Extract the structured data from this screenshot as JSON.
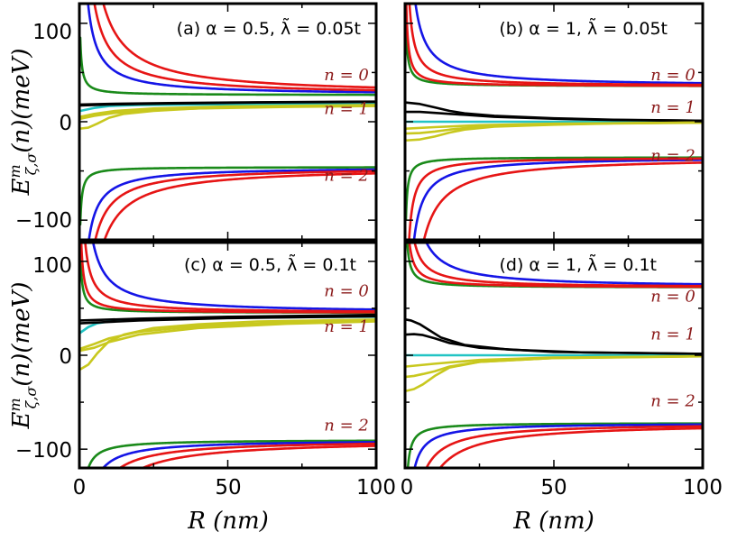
{
  "figure": {
    "xlabel": "R (nm)",
    "ylabel": "E^m_{ζ,σ}(n)(meV)",
    "ylabel_parts": {
      "base": "E",
      "sup": "m",
      "sub": "ζ,σ",
      "rest": "(n)(meV)"
    }
  },
  "chart_data": [
    {
      "type": "line",
      "panel": "a",
      "title": "(a) α = 0.5, λ̃ = 0.05t",
      "xlim": [
        0,
        100
      ],
      "ylim": [
        -120,
        120
      ],
      "xticks": [
        "0",
        "50",
        "100"
      ],
      "yticks": [
        "100",
        "0",
        "−100"
      ],
      "grid": false,
      "n_labels": [
        {
          "text": "n = 0",
          "x": 90,
          "y": 42
        },
        {
          "text": "n = 1",
          "x": 90,
          "y": 8
        },
        {
          "text": "n = 2",
          "x": 90,
          "y": -60
        }
      ],
      "series": [
        {
          "name": "n0-green",
          "color": "#1a8a1a",
          "kind": "decay",
          "a": 27,
          "k": 35,
          "p": 1.0,
          "c": 0.3
        },
        {
          "name": "n0-blue",
          "color": "#1515e6",
          "kind": "decay",
          "a": 27,
          "k": 300,
          "p": 1.0,
          "c": 0.3
        },
        {
          "name": "n0-red-1",
          "color": "#e61515",
          "kind": "decay",
          "a": 27,
          "k": 500,
          "p": 1.0,
          "c": 0.3
        },
        {
          "name": "n0-red-2",
          "color": "#e61515",
          "kind": "decay",
          "a": 27,
          "k": 780,
          "p": 1.0,
          "c": 0.3
        },
        {
          "name": "n1-cyan",
          "color": "#22c4c4",
          "kind": "points",
          "x": [
            0.3,
            5,
            10,
            20,
            40,
            70,
            100
          ],
          "y": [
            11,
            14,
            16,
            17,
            17.5,
            18,
            18.2
          ]
        },
        {
          "name": "n1-black-1",
          "color": "#000000",
          "kind": "points",
          "x": [
            0.3,
            10,
            30,
            60,
            100
          ],
          "y": [
            17.5,
            18.2,
            19,
            19.8,
            20.5
          ]
        },
        {
          "name": "n1-black-2",
          "color": "#000000",
          "kind": "points",
          "x": [
            0.3,
            10,
            30,
            60,
            100
          ],
          "y": [
            16.5,
            17.5,
            18.5,
            19.5,
            20.2
          ]
        },
        {
          "name": "n1-yellow-1",
          "color": "#c8c81e",
          "kind": "points",
          "x": [
            0.3,
            3,
            6,
            10,
            15,
            25,
            40,
            70,
            100
          ],
          "y": [
            -7,
            -6,
            -2,
            4,
            8,
            11,
            13.5,
            15,
            16
          ]
        },
        {
          "name": "n1-yellow-2",
          "color": "#c8c81e",
          "kind": "points",
          "x": [
            0.3,
            5,
            12,
            25,
            50,
            100
          ],
          "y": [
            3,
            6,
            9,
            12,
            14.5,
            16.5
          ]
        },
        {
          "name": "n1-yellow-3",
          "color": "#c8c81e",
          "kind": "points",
          "x": [
            0.3,
            5,
            12,
            25,
            50,
            100
          ],
          "y": [
            5,
            8,
            11,
            13.5,
            15.5,
            17
          ]
        },
        {
          "name": "n2-green",
          "color": "#1a8a1a",
          "kind": "decay",
          "a": -46,
          "k": -35,
          "p": 1.0,
          "c": 0.3
        },
        {
          "name": "n2-blue",
          "color": "#1515e6",
          "kind": "decay",
          "a": -46,
          "k": -260,
          "p": 1.0,
          "c": 0.3
        },
        {
          "name": "n2-red-1",
          "color": "#e61515",
          "kind": "decay",
          "a": -46,
          "k": -420,
          "p": 1.0,
          "c": 0.3
        },
        {
          "name": "n2-red-2",
          "color": "#e61515",
          "kind": "decay",
          "a": -46,
          "k": -650,
          "p": 1.0,
          "c": 0.3
        }
      ]
    },
    {
      "type": "line",
      "panel": "b",
      "title": "(b) α = 1, λ̃ = 0.05t",
      "xlim": [
        0,
        100
      ],
      "ylim": [
        -120,
        120
      ],
      "xticks": [
        "0",
        "50",
        "100"
      ],
      "yticks": [
        "100",
        "0",
        "−100"
      ],
      "grid": false,
      "n_labels": [
        {
          "text": "n = 0",
          "x": 90,
          "y": 42
        },
        {
          "text": "n = 1",
          "x": 90,
          "y": 9
        },
        {
          "text": "n = 2",
          "x": 90,
          "y": -40
        }
      ],
      "series": [
        {
          "name": "n0-green",
          "color": "#1a8a1a",
          "kind": "decay",
          "a": 36,
          "k": 38,
          "p": 1.0,
          "c": 0.3
        },
        {
          "name": "n0-blue",
          "color": "#1515e6",
          "kind": "decay",
          "a": 36,
          "k": 320,
          "p": 1.0,
          "c": 0.3
        },
        {
          "name": "n0-red-1",
          "color": "#e61515",
          "kind": "decay",
          "a": 36,
          "k": 150,
          "p": 1.0,
          "c": 0.3
        },
        {
          "name": "n0-red-2",
          "color": "#e61515",
          "kind": "decay",
          "a": 36,
          "k": 60,
          "p": 1.0,
          "c": 0.3
        },
        {
          "name": "n1-cyan",
          "color": "#22c4c4",
          "kind": "points",
          "x": [
            0.3,
            100
          ],
          "y": [
            0,
            0
          ]
        },
        {
          "name": "n1-black-1",
          "color": "#000000",
          "kind": "points",
          "x": [
            0.3,
            5,
            10,
            15,
            20,
            30,
            50,
            70,
            100
          ],
          "y": [
            19.5,
            18,
            14.5,
            11,
            8.5,
            6,
            3.5,
            2,
            1
          ]
        },
        {
          "name": "n1-black-2",
          "color": "#000000",
          "kind": "points",
          "x": [
            0.3,
            5,
            10,
            15,
            20,
            30,
            50,
            70,
            100
          ],
          "y": [
            10,
            10,
            9,
            8,
            7,
            5,
            3,
            1.8,
            1
          ]
        },
        {
          "name": "n1-yellow-1",
          "color": "#c8c81e",
          "kind": "points",
          "x": [
            0.3,
            5,
            10,
            15,
            20,
            30,
            50,
            70,
            100
          ],
          "y": [
            -19,
            -18,
            -15,
            -11,
            -8,
            -5,
            -3,
            -1.8,
            -1
          ]
        },
        {
          "name": "n1-yellow-2",
          "color": "#c8c81e",
          "kind": "points",
          "x": [
            0.3,
            5,
            10,
            15,
            20,
            30,
            50,
            70,
            100
          ],
          "y": [
            -12,
            -11.5,
            -10,
            -8,
            -6.5,
            -4.5,
            -2.7,
            -1.6,
            -0.8
          ]
        },
        {
          "name": "n1-yellow-3",
          "color": "#c8c81e",
          "kind": "points",
          "x": [
            0.3,
            10,
            25,
            50,
            100
          ],
          "y": [
            -7,
            -5.5,
            -3.5,
            -2,
            -0.8
          ]
        },
        {
          "name": "n2-green",
          "color": "#1a8a1a",
          "kind": "decay",
          "a": -36,
          "k": -38,
          "p": 1.0,
          "c": 0.3
        },
        {
          "name": "n2-blue",
          "color": "#1515e6",
          "kind": "decay",
          "a": -36,
          "k": -280,
          "p": 1.0,
          "c": 0.3
        },
        {
          "name": "n2-red-1",
          "color": "#e61515",
          "kind": "decay",
          "a": -36,
          "k": -140,
          "p": 1.0,
          "c": 0.3
        },
        {
          "name": "n2-red-2",
          "color": "#e61515",
          "kind": "decay",
          "a": -36,
          "k": -560,
          "p": 1.0,
          "c": 0.3
        }
      ]
    },
    {
      "type": "line",
      "panel": "c",
      "title": "(c) α = 0.5, λ̃ = 0.1t",
      "xlim": [
        0,
        100
      ],
      "ylim": [
        -120,
        120
      ],
      "xticks": [
        "0",
        "50",
        "100"
      ],
      "yticks": [
        "100",
        "0",
        "−100"
      ],
      "grid": false,
      "n_labels": [
        {
          "text": "n = 0",
          "x": 90,
          "y": 63
        },
        {
          "text": "n = 1",
          "x": 90,
          "y": 25
        },
        {
          "text": "n = 2",
          "x": 90,
          "y": -80
        }
      ],
      "series": [
        {
          "name": "n0-green",
          "color": "#1a8a1a",
          "kind": "decay",
          "a": 45,
          "k": 40,
          "p": 1.0,
          "c": 0.3
        },
        {
          "name": "n0-blue",
          "color": "#1515e6",
          "kind": "decay",
          "a": 45,
          "k": 370,
          "p": 1.0,
          "c": 0.3
        },
        {
          "name": "n0-red-1",
          "color": "#e61515",
          "kind": "decay",
          "a": 45,
          "k": 170,
          "p": 1.0,
          "c": 0.3
        },
        {
          "name": "n0-red-2",
          "color": "#e61515",
          "kind": "decay",
          "a": 45,
          "k": 70,
          "p": 1.0,
          "c": 0.3
        },
        {
          "name": "n1-cyan",
          "color": "#22c4c4",
          "kind": "points",
          "x": [
            0.3,
            3,
            6,
            10,
            20,
            40,
            70,
            100
          ],
          "y": [
            24,
            30,
            34,
            36,
            38,
            39.5,
            40.5,
            41
          ]
        },
        {
          "name": "n1-black-1",
          "color": "#000000",
          "kind": "points",
          "x": [
            0.3,
            20,
            50,
            100
          ],
          "y": [
            37,
            39,
            41,
            43
          ]
        },
        {
          "name": "n1-black-2",
          "color": "#000000",
          "kind": "points",
          "x": [
            0.3,
            20,
            50,
            100
          ],
          "y": [
            34,
            37,
            39.5,
            41.5
          ]
        },
        {
          "name": "n1-yellow-1",
          "color": "#c8c81e",
          "kind": "points",
          "x": [
            0.3,
            3,
            6,
            10,
            15,
            25,
            40,
            60,
            100
          ],
          "y": [
            -15,
            -10,
            2,
            15,
            22,
            29,
            33,
            36,
            38
          ]
        },
        {
          "name": "n1-yellow-2",
          "color": "#c8c81e",
          "kind": "points",
          "x": [
            0.3,
            5,
            10,
            20,
            40,
            70,
            100
          ],
          "y": [
            5,
            8,
            14,
            22,
            29,
            33.5,
            36
          ]
        },
        {
          "name": "n1-yellow-3",
          "color": "#c8c81e",
          "kind": "points",
          "x": [
            0.3,
            5,
            10,
            20,
            40,
            70,
            100
          ],
          "y": [
            7,
            12,
            18,
            25,
            31,
            35,
            37.5
          ]
        },
        {
          "name": "n2-green",
          "color": "#1a8a1a",
          "kind": "decay",
          "a": -90,
          "k": -100,
          "p": 1.0,
          "c": 0.3
        },
        {
          "name": "n2-blue",
          "color": "#1515e6",
          "kind": "decay",
          "a": -90,
          "k": -250,
          "p": 1.0,
          "c": 0.3
        },
        {
          "name": "n2-red-1",
          "color": "#e61515",
          "kind": "decay",
          "a": -90,
          "k": -420,
          "p": 1.0,
          "c": 0.3
        },
        {
          "name": "n2-red-2",
          "color": "#e61515",
          "kind": "decay",
          "a": -90,
          "k": -650,
          "p": 1.0,
          "c": 0.3
        }
      ]
    },
    {
      "type": "line",
      "panel": "d",
      "title": "(d) α = 1, λ̃ = 0.1t",
      "xlim": [
        0,
        100
      ],
      "ylim": [
        -120,
        120
      ],
      "xticks": [
        "0",
        "50",
        "100"
      ],
      "yticks": [
        "100",
        "0",
        "−100"
      ],
      "grid": false,
      "n_labels": [
        {
          "text": "n = 0",
          "x": 90,
          "y": 57
        },
        {
          "text": "n = 1",
          "x": 90,
          "y": 17
        },
        {
          "text": "n = 2",
          "x": 90,
          "y": -54
        }
      ],
      "series": [
        {
          "name": "n0-green",
          "color": "#1a8a1a",
          "kind": "decay",
          "a": 72,
          "k": 50,
          "p": 1.0,
          "c": 0.3
        },
        {
          "name": "n0-blue",
          "color": "#1515e6",
          "kind": "decay",
          "a": 72,
          "k": 360,
          "p": 1.0,
          "c": 0.3
        },
        {
          "name": "n0-red-1",
          "color": "#e61515",
          "kind": "decay",
          "a": 72,
          "k": 170,
          "p": 1.0,
          "c": 0.3
        },
        {
          "name": "n0-red-2",
          "color": "#e61515",
          "kind": "decay",
          "a": 72,
          "k": 85,
          "p": 1.0,
          "c": 0.3
        },
        {
          "name": "n1-cyan",
          "color": "#22c4c4",
          "kind": "points",
          "x": [
            0.3,
            100
          ],
          "y": [
            0,
            0
          ]
        },
        {
          "name": "n1-black-1",
          "color": "#000000",
          "kind": "points",
          "x": [
            0.3,
            2,
            5,
            8,
            12,
            20,
            35,
            60,
            100
          ],
          "y": [
            38,
            37,
            33,
            27,
            19,
            11,
            6,
            3,
            1.5
          ]
        },
        {
          "name": "n1-black-2",
          "color": "#000000",
          "kind": "points",
          "x": [
            0.3,
            3,
            6,
            10,
            15,
            25,
            50,
            100
          ],
          "y": [
            22,
            22.5,
            21.5,
            18,
            13,
            8,
            3.5,
            1.5
          ]
        },
        {
          "name": "n1-yellow-1",
          "color": "#c8c81e",
          "kind": "points",
          "x": [
            0.3,
            3,
            6,
            10,
            15,
            25,
            50,
            100
          ],
          "y": [
            -38,
            -36,
            -31,
            -22,
            -13,
            -7,
            -3,
            -1.2
          ]
        },
        {
          "name": "n1-yellow-2",
          "color": "#c8c81e",
          "kind": "points",
          "x": [
            0.3,
            3,
            6,
            10,
            15,
            25,
            50,
            100
          ],
          "y": [
            -23,
            -22,
            -20,
            -17,
            -12,
            -7,
            -3,
            -1
          ]
        },
        {
          "name": "n1-yellow-3",
          "color": "#c8c81e",
          "kind": "points",
          "x": [
            0.3,
            10,
            25,
            50,
            100
          ],
          "y": [
            -12,
            -9,
            -5,
            -2.5,
            -1
          ]
        },
        {
          "name": "n2-green",
          "color": "#1a8a1a",
          "kind": "decay",
          "a": -72,
          "k": -60,
          "p": 1.0,
          "c": 0.3
        },
        {
          "name": "n2-blue",
          "color": "#1515e6",
          "kind": "decay",
          "a": -72,
          "k": -170,
          "p": 1.0,
          "c": 0.3
        },
        {
          "name": "n2-red-1",
          "color": "#e61515",
          "kind": "decay",
          "a": -72,
          "k": -360,
          "p": 1.0,
          "c": 0.3
        },
        {
          "name": "n2-red-2",
          "color": "#e61515",
          "kind": "decay",
          "a": -72,
          "k": -580,
          "p": 1.0,
          "c": 0.3
        }
      ]
    }
  ]
}
